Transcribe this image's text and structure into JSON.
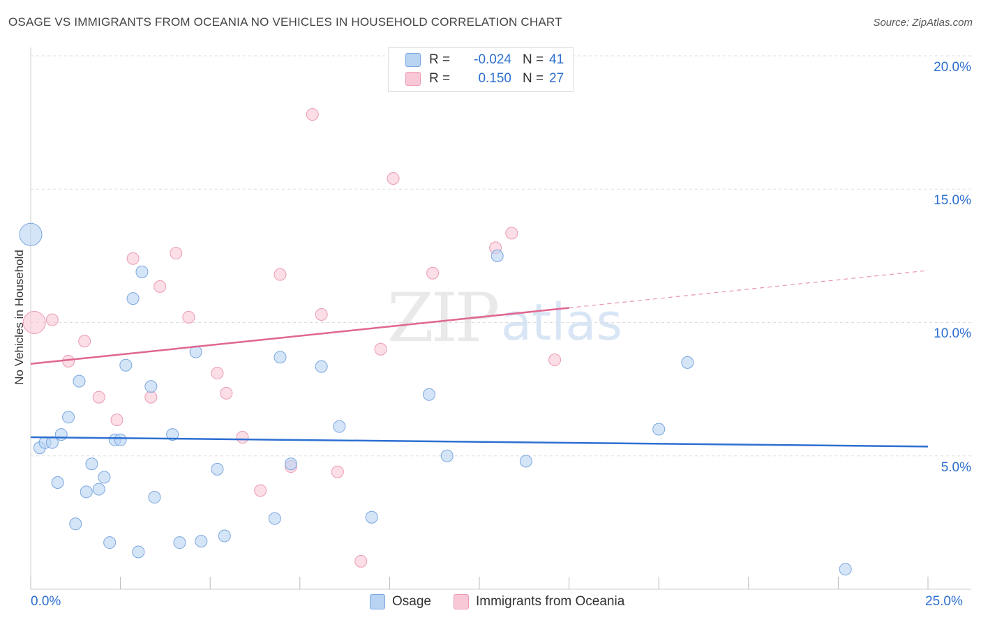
{
  "header": {
    "title": "OSAGE VS IMMIGRANTS FROM OCEANIA NO VEHICLES IN HOUSEHOLD CORRELATION CHART",
    "source": "Source: ZipAtlas.com"
  },
  "watermark": {
    "zip": "ZIP",
    "atlas": "atlas"
  },
  "legend_top": {
    "rows": [
      {
        "r_label": "R =",
        "r_value": "-0.024",
        "n_label": "N =",
        "n_value": "41"
      },
      {
        "r_label": "R =",
        "r_value": "0.150",
        "n_label": "N =",
        "n_value": "27"
      }
    ]
  },
  "legend_bottom": {
    "osage": "Osage",
    "oceania": "Immigrants from Oceania"
  },
  "axis": {
    "x_min_label": "0.0%",
    "x_max_label": "25.0%",
    "y_ticks": [
      "20.0%",
      "15.0%",
      "10.0%",
      "5.0%"
    ],
    "ylabel": "No Vehicles in Household"
  },
  "colors": {
    "osage_fill": "#b9d3f3",
    "osage_stroke": "#7aa6df",
    "osage_line": "#2d6fd1",
    "oceania_fill": "#f8c8d6",
    "oceania_stroke": "#ec9bb4",
    "oceania_line": "#e06690",
    "tick_label": "#2d6fd1"
  },
  "chart_data": {
    "type": "scatter",
    "title": "OSAGE VS IMMIGRANTS FROM OCEANIA NO VEHICLES IN HOUSEHOLD CORRELATION CHART",
    "xlabel": "",
    "ylabel": "No Vehicles in Household",
    "xlim": [
      0,
      25
    ],
    "ylim": [
      0,
      20.5
    ],
    "x_ticks": [
      0,
      25
    ],
    "y_ticks": [
      5,
      10,
      15,
      20
    ],
    "grid": "horizontal dashed",
    "legend": "bottom-center",
    "series": [
      {
        "name": "Osage",
        "r": -0.024,
        "n": 41,
        "trend": {
          "x": [
            0,
            25
          ],
          "y": [
            5.7,
            5.35
          ]
        },
        "points": [
          {
            "x": 0.0,
            "y": 13.3,
            "big": true
          },
          {
            "x": 0.25,
            "y": 5.3
          },
          {
            "x": 0.4,
            "y": 5.5
          },
          {
            "x": 0.6,
            "y": 5.5
          },
          {
            "x": 0.75,
            "y": 4.0
          },
          {
            "x": 0.85,
            "y": 5.8
          },
          {
            "x": 1.05,
            "y": 6.45
          },
          {
            "x": 1.25,
            "y": 2.45
          },
          {
            "x": 1.35,
            "y": 7.8
          },
          {
            "x": 1.55,
            "y": 3.65
          },
          {
            "x": 1.7,
            "y": 4.7
          },
          {
            "x": 1.9,
            "y": 3.75
          },
          {
            "x": 2.05,
            "y": 4.2
          },
          {
            "x": 2.2,
            "y": 1.75
          },
          {
            "x": 2.35,
            "y": 5.6
          },
          {
            "x": 2.5,
            "y": 5.6
          },
          {
            "x": 2.65,
            "y": 8.4
          },
          {
            "x": 2.85,
            "y": 10.9
          },
          {
            "x": 3.0,
            "y": 1.4
          },
          {
            "x": 3.1,
            "y": 11.9
          },
          {
            "x": 3.35,
            "y": 7.6
          },
          {
            "x": 3.45,
            "y": 3.45
          },
          {
            "x": 3.95,
            "y": 5.8
          },
          {
            "x": 4.15,
            "y": 1.75
          },
          {
            "x": 4.6,
            "y": 8.9
          },
          {
            "x": 4.75,
            "y": 1.8
          },
          {
            "x": 5.2,
            "y": 4.5
          },
          {
            "x": 5.4,
            "y": 2.0
          },
          {
            "x": 6.8,
            "y": 2.65
          },
          {
            "x": 6.95,
            "y": 8.7
          },
          {
            "x": 7.25,
            "y": 4.7
          },
          {
            "x": 8.1,
            "y": 8.35
          },
          {
            "x": 8.6,
            "y": 6.1
          },
          {
            "x": 9.5,
            "y": 2.7
          },
          {
            "x": 11.1,
            "y": 7.3
          },
          {
            "x": 11.6,
            "y": 5.0
          },
          {
            "x": 13.0,
            "y": 12.5
          },
          {
            "x": 13.8,
            "y": 4.8
          },
          {
            "x": 17.5,
            "y": 6.0
          },
          {
            "x": 18.3,
            "y": 8.5
          },
          {
            "x": 22.7,
            "y": 0.75
          }
        ]
      },
      {
        "name": "Immigrants from Oceania",
        "r": 0.15,
        "n": 27,
        "trend": {
          "x": [
            0,
            15
          ],
          "y": [
            8.45,
            10.55
          ],
          "dashed_to": {
            "x": 25,
            "y": 11.95
          }
        },
        "points": [
          {
            "x": 0.1,
            "y": 10.0,
            "big": true
          },
          {
            "x": 0.6,
            "y": 10.1
          },
          {
            "x": 1.05,
            "y": 8.55
          },
          {
            "x": 1.5,
            "y": 9.3
          },
          {
            "x": 1.9,
            "y": 7.2
          },
          {
            "x": 2.4,
            "y": 6.35
          },
          {
            "x": 2.85,
            "y": 12.4
          },
          {
            "x": 3.35,
            "y": 7.2
          },
          {
            "x": 3.6,
            "y": 11.35
          },
          {
            "x": 4.05,
            "y": 12.6
          },
          {
            "x": 4.4,
            "y": 10.2
          },
          {
            "x": 5.2,
            "y": 8.1
          },
          {
            "x": 5.45,
            "y": 7.35
          },
          {
            "x": 5.9,
            "y": 5.7
          },
          {
            "x": 6.4,
            "y": 3.7
          },
          {
            "x": 6.95,
            "y": 11.8
          },
          {
            "x": 7.25,
            "y": 4.6
          },
          {
            "x": 7.85,
            "y": 17.8
          },
          {
            "x": 8.1,
            "y": 10.3
          },
          {
            "x": 8.55,
            "y": 4.4
          },
          {
            "x": 9.2,
            "y": 1.05
          },
          {
            "x": 9.75,
            "y": 9.0
          },
          {
            "x": 10.1,
            "y": 15.4
          },
          {
            "x": 11.2,
            "y": 11.85
          },
          {
            "x": 12.95,
            "y": 12.8
          },
          {
            "x": 13.4,
            "y": 13.35
          },
          {
            "x": 14.6,
            "y": 8.6
          }
        ]
      }
    ]
  }
}
